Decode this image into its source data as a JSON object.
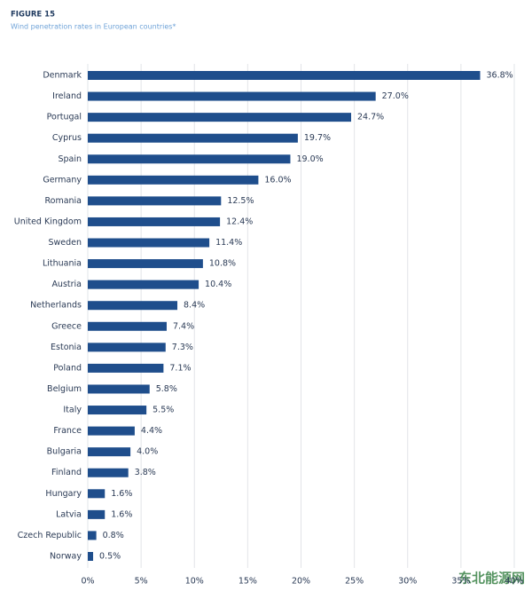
{
  "chart_data": {
    "type": "hbar",
    "label": "FIGURE 15",
    "title": "Wind penetration rates in European countries*",
    "categories": [
      "Denmark",
      "Ireland",
      "Portugal",
      "Cyprus",
      "Spain",
      "Germany",
      "Romania",
      "United Kingdom",
      "Sweden",
      "Lithuania",
      "Austria",
      "Netherlands",
      "Greece",
      "Estonia",
      "Poland",
      "Belgium",
      "Italy",
      "France",
      "Bulgaria",
      "Finland",
      "Hungary",
      "Latvia",
      "Czech Republic",
      "Norway"
    ],
    "values": [
      36.8,
      27.0,
      24.7,
      19.7,
      19.0,
      16.0,
      12.5,
      12.4,
      11.4,
      10.8,
      10.4,
      8.4,
      7.4,
      7.3,
      7.1,
      5.8,
      5.5,
      4.4,
      4.0,
      3.8,
      1.6,
      1.6,
      0.8,
      0.5
    ],
    "value_labels": [
      "36.8%",
      "27.0%",
      "24.7%",
      "19.7%",
      "19.0%",
      "16.0%",
      "12.5%",
      "12.4%",
      "11.4%",
      "10.8%",
      "10.4%",
      "8.4%",
      "7.4%",
      "7.3%",
      "7.1%",
      "5.8%",
      "5.5%",
      "4.4%",
      "4.0%",
      "3.8%",
      "1.6%",
      "1.6%",
      "0.8%",
      "0.5%"
    ],
    "color": "#1f4e8c",
    "xlim": [
      0,
      40
    ],
    "xticks": [
      {
        "value": 0,
        "label": "0%"
      },
      {
        "value": 5,
        "label": "5%"
      },
      {
        "value": 10,
        "label": "10%"
      },
      {
        "value": 15,
        "label": "15%"
      },
      {
        "value": 20,
        "label": "20%"
      },
      {
        "value": 25,
        "label": "25%"
      },
      {
        "value": 30,
        "label": "30%"
      },
      {
        "value": 35,
        "label": "35%"
      },
      {
        "value": 40,
        "label": "40%"
      }
    ],
    "grid": true,
    "watermark": "东北能源网"
  }
}
